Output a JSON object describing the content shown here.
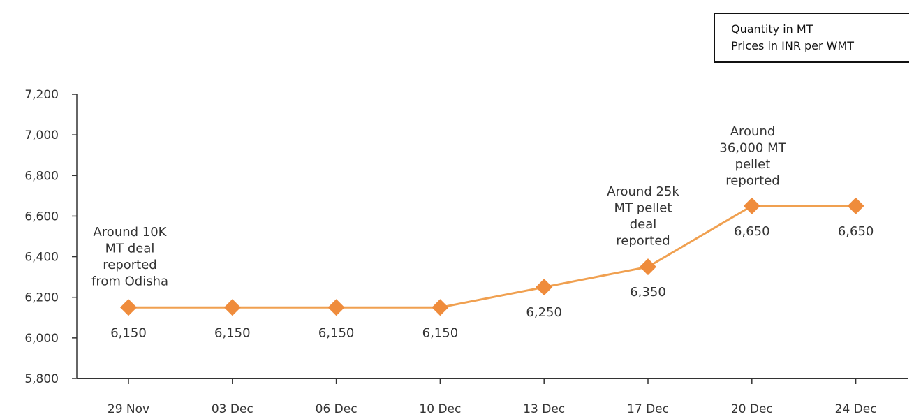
{
  "note": {
    "line1": "Quantity in MT",
    "line2": "Prices in INR per WMT"
  },
  "chart_data": {
    "type": "line",
    "title": "",
    "xlabel": "",
    "ylabel": "",
    "categories": [
      "29 Nov",
      "03 Dec",
      "06 Dec",
      "10 Dec",
      "13 Dec",
      "17 Dec",
      "20 Dec",
      "24 Dec"
    ],
    "values": [
      6150,
      6150,
      6150,
      6150,
      6250,
      6350,
      6650,
      6650
    ],
    "data_labels": [
      "6,150",
      "6,150",
      "6,150",
      "6,150",
      "6,250",
      "6,350",
      "6,650",
      "6,650"
    ],
    "ylim": [
      5800,
      7200
    ],
    "yticks": [
      5800,
      6000,
      6200,
      6400,
      6600,
      6800,
      7000,
      7200
    ],
    "ytick_labels": [
      "5,800",
      "6,000",
      "6,200",
      "6,400",
      "6,600",
      "6,800",
      "7,000",
      "7,200"
    ],
    "grid": false,
    "line_color": "#f0a050",
    "marker_color": "#ef8c3c",
    "annotations": [
      {
        "category": "29 Nov",
        "lines": [
          "Around 10K",
          "MT deal",
          "reported",
          "from  Odisha"
        ]
      },
      {
        "category": "17 Dec",
        "lines": [
          "Around 25k",
          "MT pellet",
          "deal",
          "reported"
        ]
      },
      {
        "category": "20 Dec",
        "lines": [
          "Around",
          "36,000 MT",
          "pellet",
          "reported"
        ]
      }
    ]
  }
}
